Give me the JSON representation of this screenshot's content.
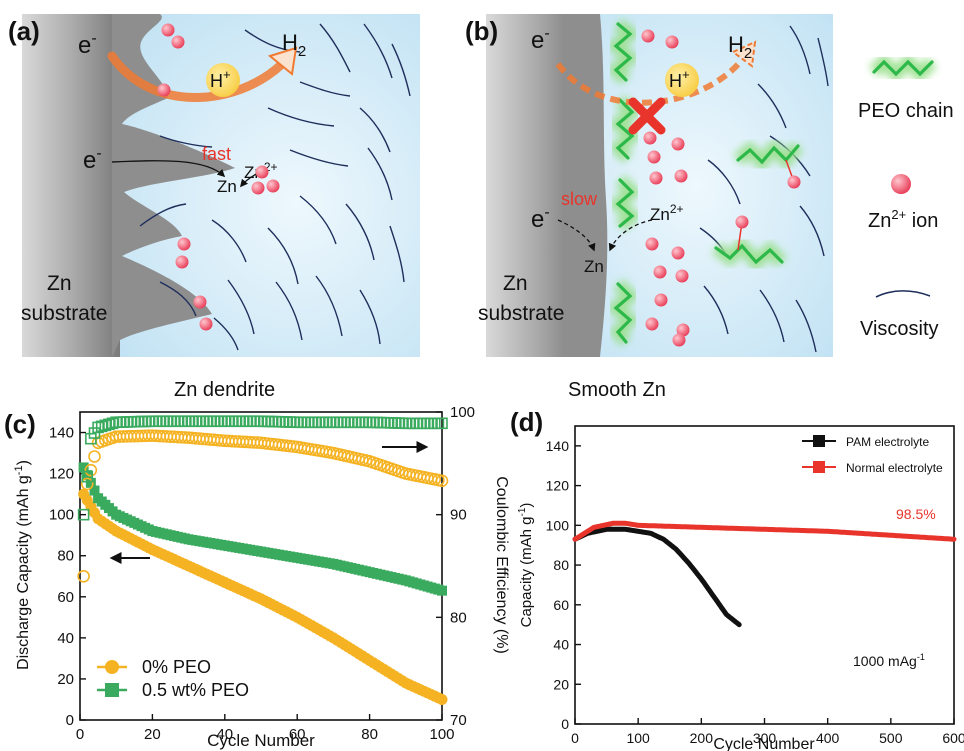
{
  "panels": {
    "a": {
      "tag": "(a)",
      "electron": "e",
      "electron_sup": "-",
      "h2": "H",
      "h2_sub": "2",
      "proton": "H",
      "proton_sup": "+",
      "fast": "fast",
      "zn": "Zn",
      "zn_ion": "Zn",
      "zn_ion_sup": "2+",
      "substrate_line1": "Zn",
      "substrate_line2": "substrate",
      "caption": "Zn dendrite"
    },
    "b": {
      "tag": "(b)",
      "electron": "e",
      "electron_sup": "-",
      "h2": "H",
      "h2_sub": "2",
      "proton": "H",
      "proton_sup": "+",
      "slow": "slow",
      "zn": "Zn",
      "zn_ion": "Zn",
      "zn_ion_sup": "2+",
      "substrate_line1": "Zn",
      "substrate_line2": "substrate",
      "caption": "Smooth Zn"
    },
    "legend": {
      "peo_chain": "PEO chain",
      "zn_ion": "Zn",
      "zn_ion_sup": "2+",
      "zn_ion_suffix": " ion",
      "viscosity": "Viscosity"
    },
    "c": {
      "tag": "(c)"
    },
    "d": {
      "tag": "(d)"
    }
  },
  "colors": {
    "electrolyte": "#d3ecf8",
    "electrolyte_light": "#eef8fd",
    "substrate": "#8c8c8c",
    "ion": "#f0506a",
    "proton": "#f8d34a",
    "arrow_orange": "#f07a32",
    "peo": "#2db84a",
    "peo_glow": "#9be08e",
    "viscosity": "#1f2f5c",
    "red_text": "#e8342a",
    "yellow_series": "#f5b323",
    "green_series": "#3aaa5e",
    "black_series": "#111111",
    "red_series": "#e8342a"
  },
  "chart_data": [
    {
      "panel": "c",
      "type": "scatter",
      "xlabel": "Cycle Number",
      "ylabel": "Discharge Capacity (mAh g",
      "ylabel_sup": "-1",
      "ylabel_end": ")",
      "y2label": "Coulombic Efficiency (%)",
      "xlim": [
        0,
        100
      ],
      "ylim": [
        0,
        150
      ],
      "y2lim": [
        70,
        100
      ],
      "xticks": [
        0,
        20,
        40,
        60,
        80,
        100
      ],
      "yticks": [
        0,
        20,
        40,
        60,
        80,
        100,
        120,
        140
      ],
      "y2ticks": [
        70,
        80,
        90,
        100
      ],
      "legend_position": "bottom-left",
      "series": [
        {
          "name": "0% PEO",
          "axis": "left",
          "marker": "filled-circle",
          "x": [
            1,
            5,
            10,
            20,
            30,
            40,
            50,
            60,
            70,
            80,
            90,
            100
          ],
          "y": [
            110,
            98,
            92,
            83,
            75,
            67,
            59,
            50,
            40,
            29,
            18,
            10
          ]
        },
        {
          "name": "0.5 wt% PEO",
          "axis": "left",
          "marker": "filled-square",
          "x": [
            1,
            5,
            10,
            20,
            30,
            40,
            50,
            60,
            70,
            80,
            90,
            100
          ],
          "y": [
            123,
            108,
            100,
            92,
            88,
            85,
            82,
            79,
            76,
            72,
            68,
            63
          ]
        },
        {
          "name": "0% PEO",
          "axis": "right",
          "marker": "open-circle",
          "x": [
            1,
            2,
            5,
            10,
            20,
            30,
            40,
            50,
            60,
            65,
            70,
            80,
            90,
            100
          ],
          "y": [
            84,
            93,
            97,
            97.6,
            97.7,
            97.5,
            97.2,
            97,
            96.6,
            96.3,
            96,
            95.2,
            94,
            93.3
          ]
        },
        {
          "name": "0.5 wt% PEO",
          "axis": "right",
          "marker": "open-square",
          "x": [
            1,
            3,
            5,
            10,
            20,
            30,
            40,
            50,
            60,
            70,
            80,
            90,
            100
          ],
          "y": [
            90,
            97.4,
            98.5,
            99,
            99.1,
            99.1,
            99.1,
            99.1,
            99,
            99,
            99,
            98.9,
            98.9
          ]
        }
      ]
    },
    {
      "panel": "d",
      "type": "line",
      "xlabel": "Cycle Number",
      "ylabel": "Capacity (mAh g",
      "ylabel_sup": "-1",
      "ylabel_end": ")",
      "xlim": [
        0,
        600
      ],
      "ylim": [
        0,
        150
      ],
      "xticks": [
        0,
        100,
        200,
        300,
        400,
        500,
        600
      ],
      "yticks": [
        0,
        20,
        40,
        60,
        80,
        100,
        120,
        140
      ],
      "legend_position": "top-right",
      "annotation": "98.5%",
      "rate_label": "1000 mAg",
      "rate_label_sup": "-1",
      "series": [
        {
          "name": "PAM electrolyte",
          "x": [
            0,
            20,
            50,
            80,
            100,
            120,
            140,
            160,
            180,
            200,
            220,
            240,
            260
          ],
          "y": [
            93,
            96,
            98,
            98,
            97,
            96,
            93,
            88,
            81,
            73,
            64,
            55,
            50
          ]
        },
        {
          "name": "Normal electrolyte",
          "x": [
            0,
            30,
            60,
            80,
            100,
            200,
            300,
            400,
            500,
            600
          ],
          "y": [
            93,
            99,
            101,
            101,
            100,
            99,
            98,
            97,
            95,
            93
          ]
        }
      ]
    }
  ]
}
